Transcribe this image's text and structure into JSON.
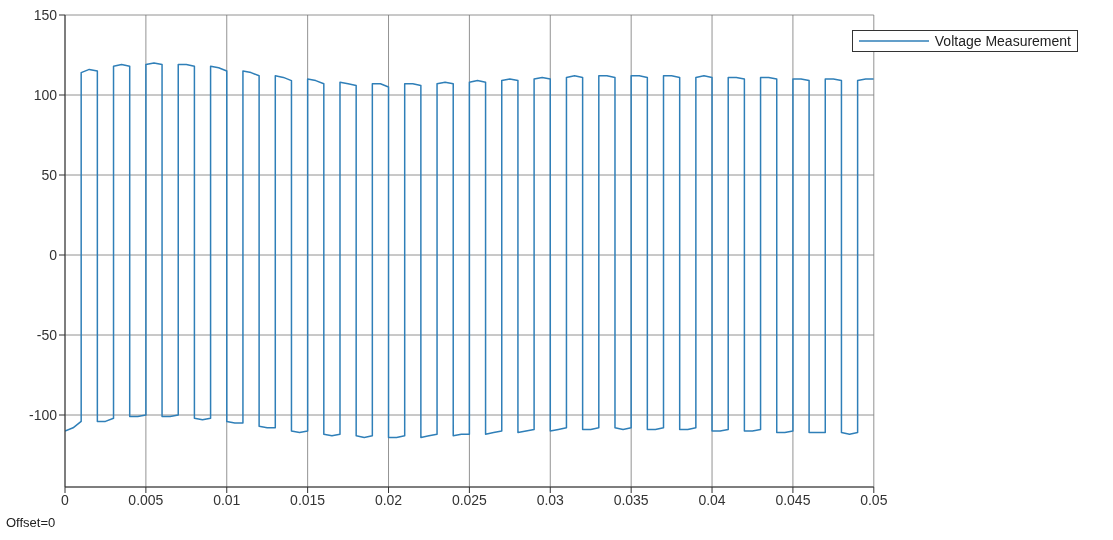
{
  "chart_data": {
    "type": "line",
    "annotations": [
      "Offset=0"
    ],
    "x": [
      0,
      0.0005,
      0.001,
      0.001,
      0.0015,
      0.002,
      0.002,
      0.0025,
      0.003,
      0.003,
      0.0035,
      0.004,
      0.004,
      0.0045,
      0.005,
      0.005,
      0.0055,
      0.006,
      0.006,
      0.0065,
      0.007,
      0.007,
      0.0075,
      0.008,
      0.008,
      0.0085,
      0.009,
      0.009,
      0.0095,
      0.01,
      0.01,
      0.0105,
      0.011,
      0.011,
      0.0115,
      0.012,
      0.012,
      0.0125,
      0.013,
      0.013,
      0.0135,
      0.014,
      0.014,
      0.0145,
      0.015,
      0.015,
      0.0155,
      0.016,
      0.016,
      0.0165,
      0.017,
      0.017,
      0.0175,
      0.018,
      0.018,
      0.0185,
      0.019,
      0.019,
      0.0195,
      0.02,
      0.02,
      0.0205,
      0.021,
      0.021,
      0.0215,
      0.022,
      0.022,
      0.0225,
      0.023,
      0.023,
      0.0235,
      0.024,
      0.024,
      0.0245,
      0.025,
      0.025,
      0.0255,
      0.026,
      0.026,
      0.0265,
      0.027,
      0.027,
      0.0275,
      0.028,
      0.028,
      0.0285,
      0.029,
      0.029,
      0.0295,
      0.03,
      0.03,
      0.0305,
      0.031,
      0.031,
      0.0315,
      0.032,
      0.032,
      0.0325,
      0.033,
      0.033,
      0.0335,
      0.034,
      0.034,
      0.0345,
      0.035,
      0.035,
      0.0355,
      0.036,
      0.036,
      0.0365,
      0.037,
      0.037,
      0.0375,
      0.038,
      0.038,
      0.0385,
      0.039,
      0.039,
      0.0395,
      0.04,
      0.04,
      0.0405,
      0.041,
      0.041,
      0.0415,
      0.042,
      0.042,
      0.0425,
      0.043,
      0.043,
      0.0435,
      0.044,
      0.044,
      0.0445,
      0.045,
      0.045,
      0.0455,
      0.046,
      0.046,
      0.0465,
      0.047,
      0.047,
      0.0475,
      0.048,
      0.048,
      0.0485,
      0.049,
      0.049,
      0.0495,
      0.05
    ],
    "series": [
      {
        "name": "Voltage Measurement",
        "color": "#2f7fb8",
        "values": [
          -110,
          -108,
          -104,
          114,
          116,
          115,
          -104,
          -104,
          -102,
          118,
          119,
          118,
          -101,
          -101,
          -100,
          119,
          120,
          119,
          -101,
          -101,
          -100,
          119,
          119,
          118,
          -102,
          -103,
          -102,
          118,
          117,
          115,
          -104,
          -105,
          -105,
          115,
          114,
          112,
          -107,
          -108,
          -108,
          112,
          111,
          109,
          -110,
          -111,
          -110,
          110,
          109,
          107,
          -112,
          -113,
          -112,
          108,
          107,
          106,
          -113,
          -114,
          -113,
          107,
          107,
          105,
          -114,
          -114,
          -113,
          107,
          107,
          106,
          -114,
          -113,
          -112,
          107,
          108,
          107,
          -113,
          -112,
          -112,
          108,
          109,
          108,
          -112,
          -111,
          -110,
          109,
          110,
          109,
          -111,
          -110,
          -109,
          110,
          111,
          110,
          -110,
          -109,
          -108,
          111,
          112,
          111,
          -109,
          -109,
          -108,
          112,
          112,
          111,
          -108,
          -109,
          -108,
          112,
          112,
          111,
          -109,
          -109,
          -108,
          112,
          112,
          111,
          -109,
          -109,
          -108,
          111,
          112,
          111,
          -110,
          -110,
          -109,
          111,
          111,
          110,
          -110,
          -110,
          -109,
          111,
          111,
          110,
          -111,
          -111,
          -110,
          110,
          110,
          109,
          -111,
          -111,
          -111,
          110,
          110,
          109,
          -111,
          -112,
          -111,
          109,
          110,
          110
        ]
      }
    ],
    "xlim": [
      0,
      0.05
    ],
    "xticks": [
      0,
      0.005,
      0.01,
      0.015,
      0.02,
      0.025,
      0.03,
      0.035,
      0.04,
      0.045,
      0.05
    ],
    "ylim": [
      -145,
      150
    ],
    "yticks": [
      -100,
      -50,
      0,
      50,
      100,
      150
    ],
    "grid": true,
    "legend": "top right"
  }
}
